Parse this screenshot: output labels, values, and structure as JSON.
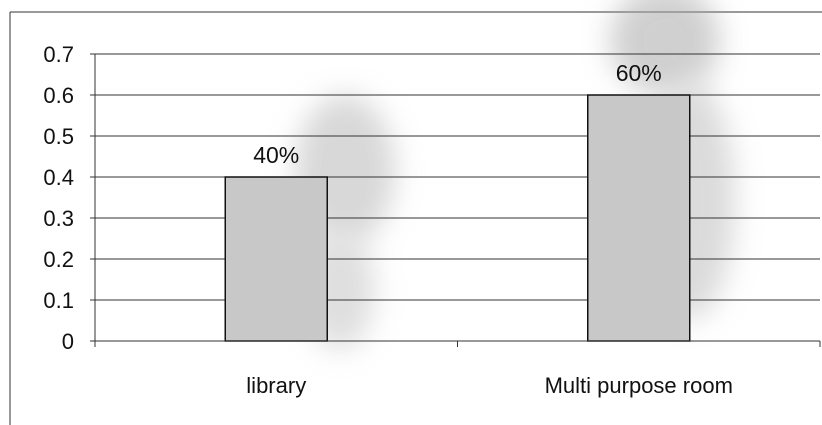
{
  "chart_data": {
    "type": "bar",
    "categories": [
      "library",
      "Multi purpose room"
    ],
    "values": [
      0.4,
      0.6
    ],
    "data_labels": [
      "40%",
      "60%"
    ],
    "y_ticks": [
      "0",
      "0.1",
      "0.2",
      "0.3",
      "0.4",
      "0.5",
      "0.6",
      "0.7"
    ],
    "ylim": [
      0,
      0.7
    ],
    "grid": true,
    "legend": "none",
    "title": "",
    "xlabel": "",
    "ylabel": "",
    "colors": {
      "bar_fill": "#c8c8c8",
      "bar_edge": "#111111",
      "grid": "#333333",
      "smudge": "#a9a9a9"
    }
  }
}
